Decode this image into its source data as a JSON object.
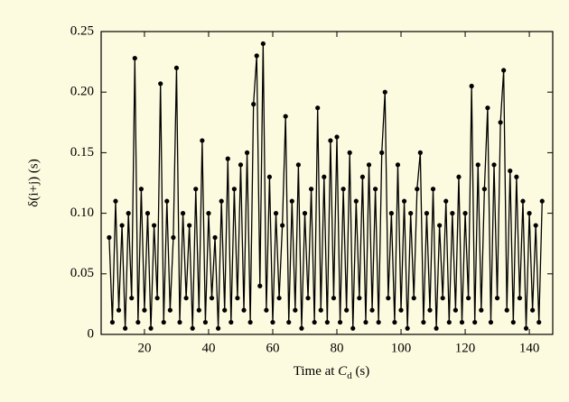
{
  "chart_data": {
    "type": "line",
    "ylabel": "δ(i+j) (s)",
    "xlabel_parts": [
      "Time at ",
      "C",
      "d",
      " (s)"
    ],
    "x": [
      9,
      10,
      11,
      12,
      13,
      14,
      15,
      16,
      17,
      18,
      19,
      20,
      21,
      22,
      23,
      24,
      25,
      26,
      27,
      28,
      29,
      30,
      31,
      32,
      33,
      34,
      35,
      36,
      37,
      38,
      39,
      40,
      41,
      42,
      43,
      44,
      45,
      46,
      47,
      48,
      49,
      50,
      51,
      52,
      53,
      54,
      55,
      56,
      57,
      58,
      59,
      60,
      61,
      62,
      63,
      64,
      65,
      66,
      67,
      68,
      69,
      70,
      71,
      72,
      73,
      74,
      75,
      76,
      77,
      78,
      79,
      80,
      81,
      82,
      83,
      84,
      85,
      86,
      87,
      88,
      89,
      90,
      91,
      92,
      93,
      94,
      95,
      96,
      97,
      98,
      99,
      100,
      101,
      102,
      103,
      104,
      105,
      106,
      107,
      108,
      109,
      110,
      111,
      112,
      113,
      114,
      115,
      116,
      117,
      118,
      119,
      120,
      121,
      122,
      123,
      124,
      125,
      126,
      127,
      128,
      129,
      130,
      131,
      132,
      133,
      134,
      135,
      136,
      137,
      138,
      139,
      140,
      141,
      142,
      143,
      144
    ],
    "series": [
      {
        "color": "#000000",
        "values": [
          0.08,
          0.01,
          0.11,
          0.02,
          0.09,
          0.005,
          0.1,
          0.03,
          0.228,
          0.01,
          0.12,
          0.02,
          0.1,
          0.005,
          0.09,
          0.03,
          0.207,
          0.01,
          0.11,
          0.02,
          0.08,
          0.22,
          0.01,
          0.1,
          0.03,
          0.09,
          0.005,
          0.12,
          0.02,
          0.16,
          0.01,
          0.1,
          0.03,
          0.08,
          0.005,
          0.11,
          0.02,
          0.145,
          0.01,
          0.12,
          0.03,
          0.14,
          0.02,
          0.15,
          0.01,
          0.19,
          0.23,
          0.04,
          0.24,
          0.02,
          0.13,
          0.01,
          0.1,
          0.03,
          0.09,
          0.18,
          0.01,
          0.11,
          0.02,
          0.14,
          0.005,
          0.1,
          0.03,
          0.12,
          0.01,
          0.187,
          0.02,
          0.13,
          0.01,
          0.16,
          0.03,
          0.163,
          0.01,
          0.12,
          0.02,
          0.15,
          0.005,
          0.11,
          0.03,
          0.13,
          0.01,
          0.14,
          0.02,
          0.12,
          0.01,
          0.15,
          0.2,
          0.03,
          0.1,
          0.01,
          0.14,
          0.02,
          0.11,
          0.005,
          0.1,
          0.03,
          0.12,
          0.15,
          0.01,
          0.1,
          0.02,
          0.12,
          0.005,
          0.09,
          0.03,
          0.11,
          0.01,
          0.1,
          0.02,
          0.13,
          0.01,
          0.1,
          0.03,
          0.205,
          0.01,
          0.14,
          0.02,
          0.12,
          0.187,
          0.01,
          0.14,
          0.03,
          0.175,
          0.218,
          0.02,
          0.135,
          0.01,
          0.13,
          0.03,
          0.11,
          0.005,
          0.1,
          0.02,
          0.09,
          0.01,
          0.11
        ]
      }
    ],
    "xlim": [
      6.5,
      147.3
    ],
    "ylim": [
      0,
      0.25
    ],
    "xticks": [
      20,
      40,
      60,
      80,
      100,
      120,
      140
    ],
    "yticks": [
      0,
      {
        "value": 0.05,
        "label": "0.05"
      },
      {
        "value": 0.1,
        "label": "0.10"
      },
      {
        "value": 0.15,
        "label": "0.15"
      },
      {
        "value": 0.2,
        "label": "0.20"
      },
      {
        "value": 0.25,
        "label": "0.25"
      }
    ]
  }
}
